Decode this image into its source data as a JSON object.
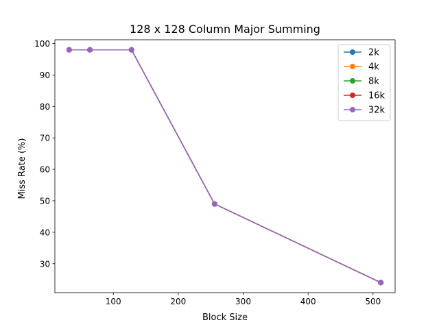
{
  "chart_data": {
    "type": "line",
    "title": "128 x 128 Column Major Summing",
    "xlabel": "Block Size",
    "ylabel": "Miss Rate (%)",
    "x": [
      32,
      64,
      128,
      256,
      512
    ],
    "xlim": [
      10,
      534
    ],
    "ylim": [
      20.8,
      101.2
    ],
    "xticks": [
      100,
      200,
      300,
      400,
      500
    ],
    "yticks": [
      30,
      40,
      50,
      60,
      70,
      80,
      90,
      100
    ],
    "grid": false,
    "legend_position": "top-right",
    "series": [
      {
        "name": "2k",
        "color": "#1f77b4",
        "values": [
          98,
          98,
          98,
          49,
          24
        ]
      },
      {
        "name": "4k",
        "color": "#ff7f0e",
        "values": [
          98,
          98,
          98,
          49,
          24
        ]
      },
      {
        "name": "8k",
        "color": "#2ca02c",
        "values": [
          98,
          98,
          98,
          49,
          24
        ]
      },
      {
        "name": "16k",
        "color": "#d62728",
        "values": [
          98,
          98,
          98,
          49,
          24
        ]
      },
      {
        "name": "32k",
        "color": "#9467bd",
        "values": [
          98,
          98,
          98,
          49,
          24
        ]
      }
    ]
  }
}
